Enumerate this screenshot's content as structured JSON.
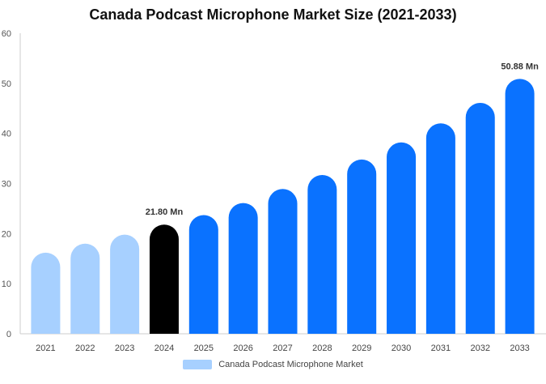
{
  "colors": {
    "historical": "#a7d0ff",
    "base_year": "#000000",
    "forecast": "#0a72ff",
    "axis": "#cccccc",
    "grid": "#eeeeee"
  },
  "chart_data": {
    "type": "bar",
    "title": "Canada Podcast Microphone Market Size (2021-2033)",
    "xlabel": "",
    "ylabel": "",
    "ylim": [
      0,
      60
    ],
    "yticks": [
      0,
      10,
      20,
      30,
      40,
      50,
      60
    ],
    "grid": false,
    "legend_position": "bottom-center",
    "categories": [
      "2021",
      "2022",
      "2023",
      "2024",
      "2025",
      "2026",
      "2027",
      "2028",
      "2029",
      "2030",
      "2031",
      "2032",
      "2033"
    ],
    "series": [
      {
        "name": "Canada Podcast Microphone Market",
        "values": [
          16.2,
          18.0,
          19.8,
          21.8,
          23.7,
          26.1,
          28.9,
          31.7,
          34.8,
          38.2,
          42.0,
          46.1,
          50.88
        ],
        "bar_styles": [
          "historical",
          "historical",
          "historical",
          "base_year",
          "forecast",
          "forecast",
          "forecast",
          "forecast",
          "forecast",
          "forecast",
          "forecast",
          "forecast",
          "forecast"
        ]
      }
    ],
    "annotations": [
      {
        "category": "2024",
        "text": "21.80 Mn"
      },
      {
        "category": "2033",
        "text": "50.88 Mn"
      }
    ]
  }
}
